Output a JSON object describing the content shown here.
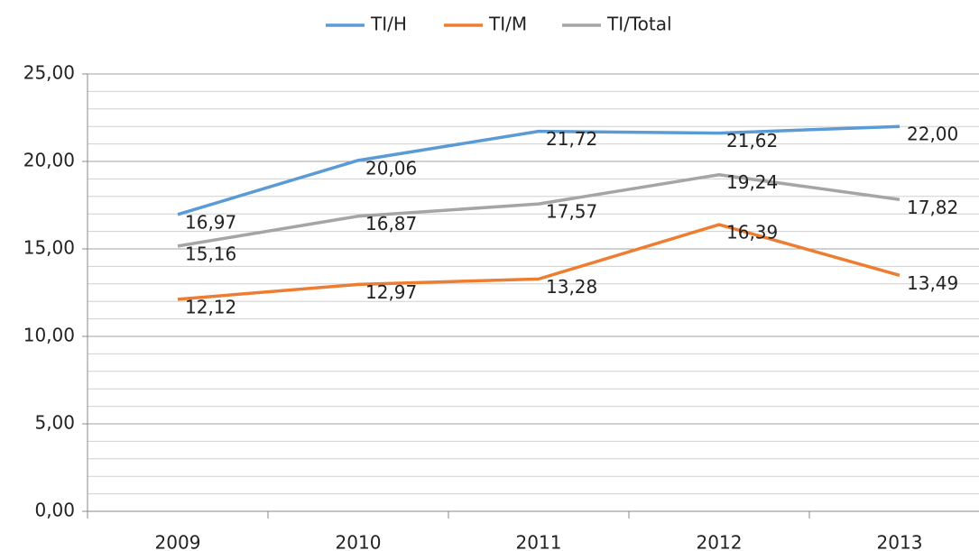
{
  "chart_data": {
    "type": "line",
    "categories": [
      "2009",
      "2010",
      "2011",
      "2012",
      "2013"
    ],
    "series": [
      {
        "name": "TI/H",
        "color": "#5b9bd5",
        "values": [
          16.97,
          20.06,
          21.72,
          21.62,
          22.0
        ],
        "value_labels": [
          "16,97",
          "20,06",
          "21,72",
          "21,62",
          "22,00"
        ]
      },
      {
        "name": "TI/M",
        "color": "#ed7d31",
        "values": [
          12.12,
          12.97,
          13.28,
          16.39,
          13.49
        ],
        "value_labels": [
          "12,12",
          "12,97",
          "13,28",
          "16,39",
          "13,49"
        ]
      },
      {
        "name": "TI/Total",
        "color": "#a5a5a5",
        "values": [
          15.16,
          16.87,
          17.57,
          19.24,
          17.82
        ],
        "value_labels": [
          "15,16",
          "16,87",
          "17,57",
          "19,24",
          "17,82"
        ]
      }
    ],
    "ylim": [
      0,
      25
    ],
    "yticks": [
      {
        "value": 0,
        "label": "0,00"
      },
      {
        "value": 5,
        "label": "5,00"
      },
      {
        "value": 10,
        "label": "10,00"
      },
      {
        "value": 15,
        "label": "15,00"
      },
      {
        "value": 20,
        "label": "20,00"
      },
      {
        "value": 25,
        "label": "25,00"
      }
    ],
    "minor_yticks": [
      1,
      2,
      3,
      4,
      6,
      7,
      8,
      9,
      11,
      12,
      13,
      14,
      16,
      17,
      18,
      19,
      21,
      22,
      23,
      24
    ],
    "grid": true,
    "legend": "top"
  }
}
